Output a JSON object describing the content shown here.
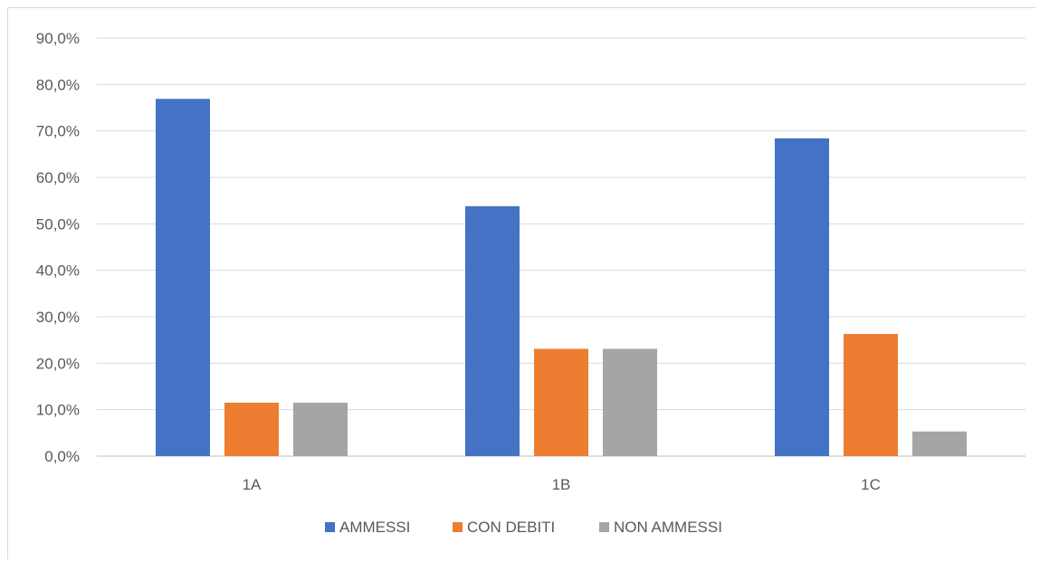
{
  "chart_data": {
    "type": "bar",
    "title": "",
    "xlabel": "",
    "ylabel": "",
    "categories": [
      "1A",
      "1B",
      "1C"
    ],
    "series": [
      {
        "name": "AMMESSI",
        "color": "#4472C4",
        "values": [
          76.9,
          53.8,
          68.4
        ]
      },
      {
        "name": "CON DEBITI",
        "color": "#ED7D31",
        "values": [
          11.5,
          23.1,
          26.3
        ]
      },
      {
        "name": "NON AMMESSI",
        "color": "#A5A5A5",
        "values": [
          11.5,
          23.1,
          5.3
        ]
      }
    ],
    "ylim": [
      0,
      90
    ],
    "yticks": [
      "0,0%",
      "10,0%",
      "20,0%",
      "30,0%",
      "40,0%",
      "50,0%",
      "60,0%",
      "70,0%",
      "80,0%",
      "90,0%"
    ],
    "grid": true,
    "legend_position": "bottom"
  }
}
